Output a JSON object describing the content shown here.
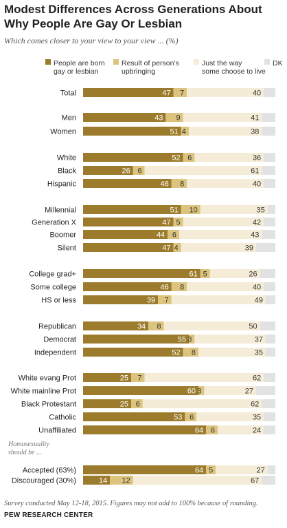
{
  "title": "Modest Differences Across Generations About Why People Are Gay Or Lesbian",
  "subtitle": "Which comes closer to your view to your view ... (%)",
  "note": "Survey conducted May 12-18, 2015. Figures may not add to 100% because of rounding.",
  "source": "PEW RESEARCH CENTER",
  "chart_data": {
    "type": "bar",
    "stacked": true,
    "orientation": "horizontal",
    "xlim": [
      0,
      100
    ],
    "legend_position": "top",
    "series": [
      {
        "name": "People are born gay or lesbian",
        "legend_lines": [
          "People are born",
          "gay or lesbian"
        ],
        "color": "#9c7c2c",
        "values": [
          47,
          43,
          51,
          52,
          26,
          46,
          51,
          47,
          44,
          47,
          61,
          46,
          39,
          34,
          55,
          52,
          25,
          60,
          25,
          53,
          64,
          64,
          14
        ]
      },
      {
        "name": "Result of person's upbringing",
        "legend_lines": [
          "Result of person's",
          "upbringing"
        ],
        "color": "#dcc47e",
        "values": [
          7,
          9,
          4,
          6,
          6,
          8,
          10,
          5,
          6,
          4,
          5,
          8,
          7,
          8,
          3,
          8,
          7,
          3,
          6,
          6,
          6,
          5,
          12
        ]
      },
      {
        "name": "Just the way some choose to live",
        "legend_lines": [
          "Just the way",
          "some choose to live"
        ],
        "color": "#f4ecd6",
        "values": [
          40,
          41,
          38,
          36,
          61,
          40,
          35,
          42,
          43,
          39,
          26,
          40,
          49,
          50,
          37,
          35,
          62,
          27,
          62,
          35,
          24,
          27,
          67
        ]
      },
      {
        "name": "DK",
        "legend_lines": [
          "DK"
        ],
        "color": "#e2e2e2",
        "values": [
          6,
          7,
          7,
          6,
          7,
          6,
          4,
          6,
          7,
          10,
          8,
          6,
          5,
          8,
          5,
          5,
          6,
          10,
          7,
          6,
          6,
          4,
          7
        ]
      }
    ],
    "categories": [
      "Total",
      "Men",
      "Women",
      "White",
      "Black",
      "Hispanic",
      "Millennial",
      "Generation X",
      "Boomer",
      "Silent",
      "College grad+",
      "Some college",
      "HS or less",
      "Republican",
      "Democrat",
      "Independent",
      "White evang Prot",
      "White mainline Prot",
      "Black Protestant",
      "Catholic",
      "Unaffiliated",
      "Accepted (63%)",
      "Discouraged (30%)"
    ],
    "group_heading": {
      "lines": [
        "Homosexuality",
        "should be ..."
      ]
    },
    "data_labels": {
      "shown_for": [
        "People are born gay or lesbian",
        "Result of person's upbringing",
        "Just the way some choose to live"
      ]
    }
  }
}
